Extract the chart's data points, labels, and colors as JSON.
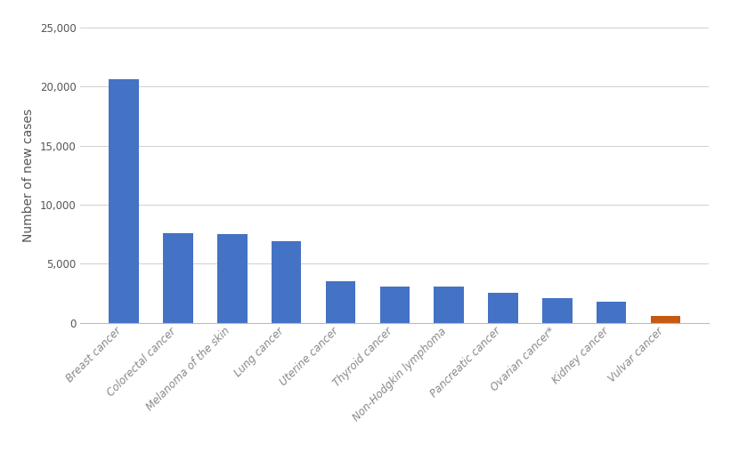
{
  "categories": [
    "Breast cancer",
    "Colorectal cancer",
    "Melanoma of the skin",
    "Lung cancer",
    "Uterine cancer",
    "Thyroid cancer",
    "Non-Hodgkin lymphoma",
    "Pancreatic cancer",
    "Ovarian cancer*",
    "Kidney cancer",
    "Vulvar cancer"
  ],
  "values": [
    20600,
    7550,
    7500,
    6900,
    3500,
    3050,
    3050,
    2500,
    2100,
    1800,
    600
  ],
  "bar_colors": [
    "#4472C4",
    "#4472C4",
    "#4472C4",
    "#4472C4",
    "#4472C4",
    "#4472C4",
    "#4472C4",
    "#4472C4",
    "#4472C4",
    "#4472C4",
    "#C55A11"
  ],
  "ylabel": "Number of new cases",
  "ylim": [
    0,
    25000
  ],
  "yticks": [
    0,
    5000,
    10000,
    15000,
    20000,
    25000
  ],
  "background_color": "#ffffff",
  "grid_color": "#d0d0d0",
  "bar_width": 0.55,
  "ylabel_fontsize": 10,
  "tick_fontsize": 8.5,
  "xtick_color": "#888888",
  "ytick_color": "#555555"
}
